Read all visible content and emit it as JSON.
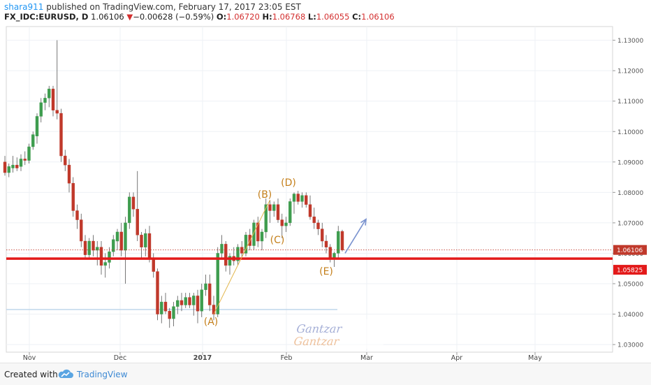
{
  "header": {
    "user": "shara911",
    "published_text": " published on TradingView.com, February 17, 2017 23:05 EST",
    "symbol": "FX_IDC:EURUSD, D",
    "last": "1.06106",
    "change_arrow": "▼",
    "change": "−0.00628 (−0.59%)",
    "open_label": "O:",
    "open": "1.06720",
    "high_label": "H:",
    "high": "1.06768",
    "low_label": "L:",
    "low": "1.06055",
    "close_label": "C:",
    "close": "1.06106"
  },
  "colors": {
    "up": "#3f9d4f",
    "down": "#c0392b",
    "support": "#e31a1a",
    "wave_label": "#c47f1a",
    "arrow": "#7a93cf",
    "price_line": "#c0392b"
  },
  "footer": {
    "created_with": "Created with",
    "brand": "TradingView",
    "brand_icon": "tradingview-cloud-icon"
  },
  "chart_data": {
    "type": "candlestick",
    "y_ticks": [
      "1.03000",
      "1.04000",
      "1.05000",
      "1.06000",
      "1.07000",
      "1.08000",
      "1.09000",
      "1.10000",
      "1.11000",
      "1.12000",
      "1.13000"
    ],
    "x_ticks": [
      "Nov",
      "Dec",
      "2017",
      "Feb",
      "Mar",
      "Apr",
      "May"
    ],
    "ylim": [
      1.0275,
      1.1345
    ],
    "last_price_label": "1.06106",
    "support_level": 1.05825,
    "support_label": "1.05825",
    "wave_labels": [
      {
        "text": "(A)",
        "price": 1.042
      },
      {
        "text": "(B)",
        "price": 1.0795
      },
      {
        "text": "(C)",
        "price": 1.0685
      },
      {
        "text": "(D)",
        "price": 1.0828
      },
      {
        "text": "(E)",
        "price": 1.055
      }
    ],
    "candles": [
      {
        "o": 1.09,
        "h": 1.092,
        "l": 1.0855,
        "c": 1.0865
      },
      {
        "o": 1.0865,
        "h": 1.0895,
        "l": 1.085,
        "c": 1.0885
      },
      {
        "o": 1.088,
        "h": 1.092,
        "l": 1.0865,
        "c": 1.089
      },
      {
        "o": 1.089,
        "h": 1.0915,
        "l": 1.087,
        "c": 1.088
      },
      {
        "o": 1.0885,
        "h": 1.0925,
        "l": 1.087,
        "c": 1.091
      },
      {
        "o": 1.091,
        "h": 1.0935,
        "l": 1.089,
        "c": 1.0905
      },
      {
        "o": 1.0905,
        "h": 1.096,
        "l": 1.0895,
        "c": 1.095
      },
      {
        "o": 1.095,
        "h": 1.1,
        "l": 1.094,
        "c": 1.099
      },
      {
        "o": 1.0985,
        "h": 1.106,
        "l": 1.096,
        "c": 1.105
      },
      {
        "o": 1.105,
        "h": 1.111,
        "l": 1.103,
        "c": 1.1095
      },
      {
        "o": 1.1095,
        "h": 1.1125,
        "l": 1.107,
        "c": 1.111
      },
      {
        "o": 1.111,
        "h": 1.115,
        "l": 1.108,
        "c": 1.114
      },
      {
        "o": 1.114,
        "h": 1.115,
        "l": 1.105,
        "c": 1.107
      },
      {
        "o": 1.107,
        "h": 1.13,
        "l": 1.104,
        "c": 1.106
      },
      {
        "o": 1.106,
        "h": 1.1075,
        "l": 1.09,
        "c": 1.092
      },
      {
        "o": 1.092,
        "h": 1.094,
        "l": 1.087,
        "c": 1.089
      },
      {
        "o": 1.089,
        "h": 1.091,
        "l": 1.08,
        "c": 1.083
      },
      {
        "o": 1.083,
        "h": 1.085,
        "l": 1.072,
        "c": 1.074
      },
      {
        "o": 1.074,
        "h": 1.076,
        "l": 1.068,
        "c": 1.071
      },
      {
        "o": 1.071,
        "h": 1.073,
        "l": 1.062,
        "c": 1.064
      },
      {
        "o": 1.064,
        "h": 1.066,
        "l": 1.058,
        "c": 1.0595
      },
      {
        "o": 1.0595,
        "h": 1.065,
        "l": 1.058,
        "c": 1.064
      },
      {
        "o": 1.064,
        "h": 1.066,
        "l": 1.059,
        "c": 1.061
      },
      {
        "o": 1.061,
        "h": 1.064,
        "l": 1.056,
        "c": 1.062
      },
      {
        "o": 1.062,
        "h": 1.064,
        "l": 1.053,
        "c": 1.056
      },
      {
        "o": 1.056,
        "h": 1.06,
        "l": 1.052,
        "c": 1.057
      },
      {
        "o": 1.057,
        "h": 1.062,
        "l": 1.055,
        "c": 1.0605
      },
      {
        "o": 1.0605,
        "h": 1.066,
        "l": 1.059,
        "c": 1.0645
      },
      {
        "o": 1.064,
        "h": 1.068,
        "l": 1.061,
        "c": 1.067
      },
      {
        "o": 1.067,
        "h": 1.07,
        "l": 1.059,
        "c": 1.061
      },
      {
        "o": 1.061,
        "h": 1.072,
        "l": 1.05,
        "c": 1.07
      },
      {
        "o": 1.07,
        "h": 1.08,
        "l": 1.068,
        "c": 1.0785
      },
      {
        "o": 1.0785,
        "h": 1.08,
        "l": 1.072,
        "c": 1.0745
      },
      {
        "o": 1.0745,
        "h": 1.087,
        "l": 1.064,
        "c": 1.066
      },
      {
        "o": 1.066,
        "h": 1.067,
        "l": 1.058,
        "c": 1.062
      },
      {
        "o": 1.062,
        "h": 1.068,
        "l": 1.059,
        "c": 1.0665
      },
      {
        "o": 1.0665,
        "h": 1.069,
        "l": 1.057,
        "c": 1.058
      },
      {
        "o": 1.058,
        "h": 1.06,
        "l": 1.052,
        "c": 1.054
      },
      {
        "o": 1.054,
        "h": 1.055,
        "l": 1.038,
        "c": 1.04
      },
      {
        "o": 1.04,
        "h": 1.046,
        "l": 1.037,
        "c": 1.044
      },
      {
        "o": 1.044,
        "h": 1.047,
        "l": 1.04,
        "c": 1.041
      },
      {
        "o": 1.041,
        "h": 1.042,
        "l": 1.0355,
        "c": 1.0385
      },
      {
        "o": 1.0385,
        "h": 1.044,
        "l": 1.036,
        "c": 1.0425
      },
      {
        "o": 1.0425,
        "h": 1.046,
        "l": 1.04,
        "c": 1.0445
      },
      {
        "o": 1.0445,
        "h": 1.047,
        "l": 1.041,
        "c": 1.043
      },
      {
        "o": 1.043,
        "h": 1.047,
        "l": 1.042,
        "c": 1.0455
      },
      {
        "o": 1.0455,
        "h": 1.047,
        "l": 1.042,
        "c": 1.043
      },
      {
        "o": 1.043,
        "h": 1.047,
        "l": 1.0395,
        "c": 1.046
      },
      {
        "o": 1.046,
        "h": 1.048,
        "l": 1.037,
        "c": 1.041
      },
      {
        "o": 1.041,
        "h": 1.05,
        "l": 1.039,
        "c": 1.048
      },
      {
        "o": 1.048,
        "h": 1.053,
        "l": 1.046,
        "c": 1.05
      },
      {
        "o": 1.05,
        "h": 1.053,
        "l": 1.041,
        "c": 1.043
      },
      {
        "o": 1.043,
        "h": 1.046,
        "l": 1.038,
        "c": 1.04
      },
      {
        "o": 1.04,
        "h": 1.062,
        "l": 1.039,
        "c": 1.06
      },
      {
        "o": 1.06,
        "h": 1.066,
        "l": 1.058,
        "c": 1.063
      },
      {
        "o": 1.063,
        "h": 1.064,
        "l": 1.054,
        "c": 1.056
      },
      {
        "o": 1.056,
        "h": 1.06,
        "l": 1.053,
        "c": 1.059
      },
      {
        "o": 1.059,
        "h": 1.062,
        "l": 1.056,
        "c": 1.0575
      },
      {
        "o": 1.0575,
        "h": 1.063,
        "l": 1.056,
        "c": 1.062
      },
      {
        "o": 1.062,
        "h": 1.064,
        "l": 1.058,
        "c": 1.06
      },
      {
        "o": 1.06,
        "h": 1.067,
        "l": 1.059,
        "c": 1.066
      },
      {
        "o": 1.066,
        "h": 1.068,
        "l": 1.061,
        "c": 1.0625
      },
      {
        "o": 1.0625,
        "h": 1.071,
        "l": 1.061,
        "c": 1.07
      },
      {
        "o": 1.07,
        "h": 1.072,
        "l": 1.062,
        "c": 1.064
      },
      {
        "o": 1.064,
        "h": 1.068,
        "l": 1.061,
        "c": 1.067
      },
      {
        "o": 1.067,
        "h": 1.078,
        "l": 1.065,
        "c": 1.076
      },
      {
        "o": 1.076,
        "h": 1.0775,
        "l": 1.07,
        "c": 1.074
      },
      {
        "o": 1.074,
        "h": 1.077,
        "l": 1.072,
        "c": 1.076
      },
      {
        "o": 1.076,
        "h": 1.078,
        "l": 1.07,
        "c": 1.071
      },
      {
        "o": 1.071,
        "h": 1.073,
        "l": 1.065,
        "c": 1.069
      },
      {
        "o": 1.069,
        "h": 1.072,
        "l": 1.067,
        "c": 1.07
      },
      {
        "o": 1.07,
        "h": 1.078,
        "l": 1.069,
        "c": 1.077
      },
      {
        "o": 1.077,
        "h": 1.08,
        "l": 1.073,
        "c": 1.0795
      },
      {
        "o": 1.0795,
        "h": 1.0805,
        "l": 1.076,
        "c": 1.077
      },
      {
        "o": 1.077,
        "h": 1.08,
        "l": 1.075,
        "c": 1.079
      },
      {
        "o": 1.079,
        "h": 1.08,
        "l": 1.075,
        "c": 1.076
      },
      {
        "o": 1.076,
        "h": 1.079,
        "l": 1.071,
        "c": 1.072
      },
      {
        "o": 1.072,
        "h": 1.075,
        "l": 1.068,
        "c": 1.07
      },
      {
        "o": 1.07,
        "h": 1.071,
        "l": 1.066,
        "c": 1.068
      },
      {
        "o": 1.068,
        "h": 1.07,
        "l": 1.062,
        "c": 1.064
      },
      {
        "o": 1.064,
        "h": 1.066,
        "l": 1.06,
        "c": 1.062
      },
      {
        "o": 1.062,
        "h": 1.063,
        "l": 1.057,
        "c": 1.058
      },
      {
        "o": 1.058,
        "h": 1.0605,
        "l": 1.0555,
        "c": 1.06
      },
      {
        "o": 1.06,
        "h": 1.069,
        "l": 1.058,
        "c": 1.0672
      },
      {
        "o": 1.0672,
        "h": 1.0677,
        "l": 1.0606,
        "c": 1.0611
      }
    ]
  }
}
